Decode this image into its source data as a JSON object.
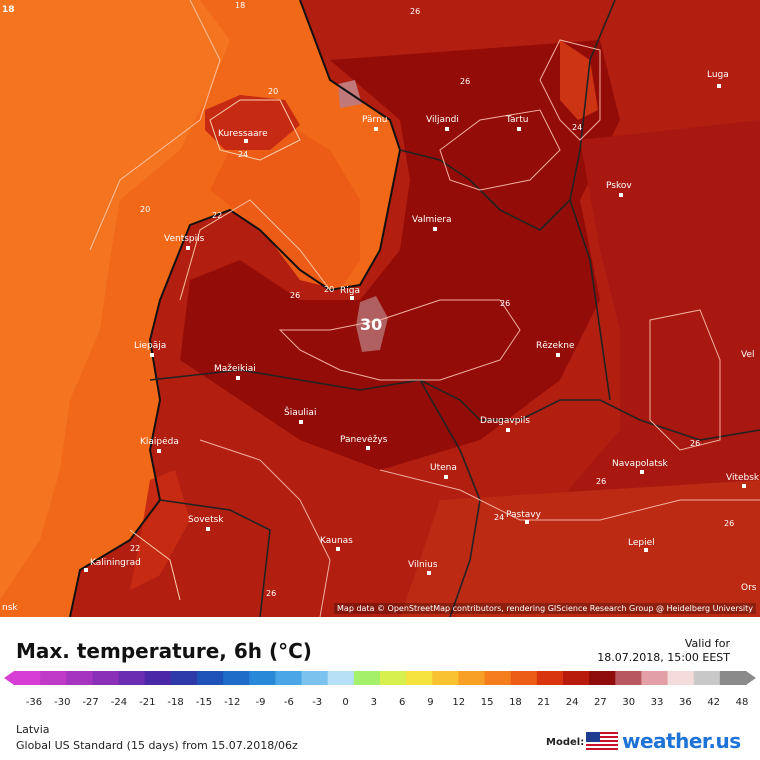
{
  "title": "Max. temperature, 6h (°C)",
  "valid_label": "Valid for",
  "valid_time": "18.07.2018, 15:00 EEST",
  "region": "Latvia",
  "model_run": "Global US Standard (15 days) from 15.07.2018/06z",
  "model_label": "Model:",
  "brand": "weather.us",
  "attribution": "Map data © OpenStreetMap contributors, rendering GIScience Research Group @ Heidelberg University",
  "scale_values": [
    "-36",
    "-30",
    "-27",
    "-24",
    "-21",
    "-18",
    "-15",
    "-12",
    "-9",
    "-6",
    "-3",
    "0",
    "3",
    "6",
    "9",
    "12",
    "15",
    "18",
    "21",
    "24",
    "27",
    "30",
    "33",
    "36",
    "42",
    "48"
  ],
  "scale_colors": [
    "#d63ed6",
    "#c03ac8",
    "#a535c0",
    "#8a30b8",
    "#6a2cb0",
    "#4a28a8",
    "#2e3aa8",
    "#1f52b8",
    "#1e6cc8",
    "#2a88d8",
    "#4aa6e6",
    "#7cc2ee",
    "#b5dff5",
    "#a5f06a",
    "#d8f04e",
    "#f6e23e",
    "#f8c232",
    "#f8a026",
    "#f47e1e",
    "#ec5c16",
    "#d8340e",
    "#b81a0c",
    "#8e0c0a",
    "#b8585e",
    "#e2a0a6",
    "#f4dcdc",
    "#c8c8c8",
    "#8a8a8a"
  ],
  "cities": [
    {
      "name": "Kuressaare"
    },
    {
      "name": "Pärnu"
    },
    {
      "name": "Viljandi"
    },
    {
      "name": "Tartu"
    },
    {
      "name": "Luga"
    },
    {
      "name": "Pskov"
    },
    {
      "name": "Valmiera"
    },
    {
      "name": "Ventspils"
    },
    {
      "name": "Riga"
    },
    {
      "name": "Rēzekne"
    },
    {
      "name": "Liepāja"
    },
    {
      "name": "Mažeikiai"
    },
    {
      "name": "Šiauliai"
    },
    {
      "name": "Klaipėda"
    },
    {
      "name": "Panevėžys"
    },
    {
      "name": "Daugavpils"
    },
    {
      "name": "Utena"
    },
    {
      "name": "Navapolatsk"
    },
    {
      "name": "Vitebsk"
    },
    {
      "name": "Sovetsk"
    },
    {
      "name": "Pastavy"
    },
    {
      "name": "Kaunas"
    },
    {
      "name": "Lepiel"
    },
    {
      "name": "Kaliningrad"
    },
    {
      "name": "Vilnius"
    }
  ],
  "contour_labels": [
    "18",
    "20",
    "20",
    "20",
    "22",
    "24",
    "26",
    "26",
    "26",
    "26",
    "26",
    "26",
    "26",
    "24",
    "26",
    "24",
    "22"
  ],
  "max_value_label": "30",
  "corner_labels": {
    "top_left": "18",
    "edge_right_velikiye": "Vel",
    "edge_right_orsha": "Ors",
    "edge_left_bottom": "nsk"
  },
  "colors": {
    "sea": "#f06a1a",
    "sea_warm": "#e85614",
    "land_warm": "#a81a10",
    "land_hot": "#8e0e0a",
    "land_mid": "#c02a12",
    "hot_spot": "#b87070"
  }
}
